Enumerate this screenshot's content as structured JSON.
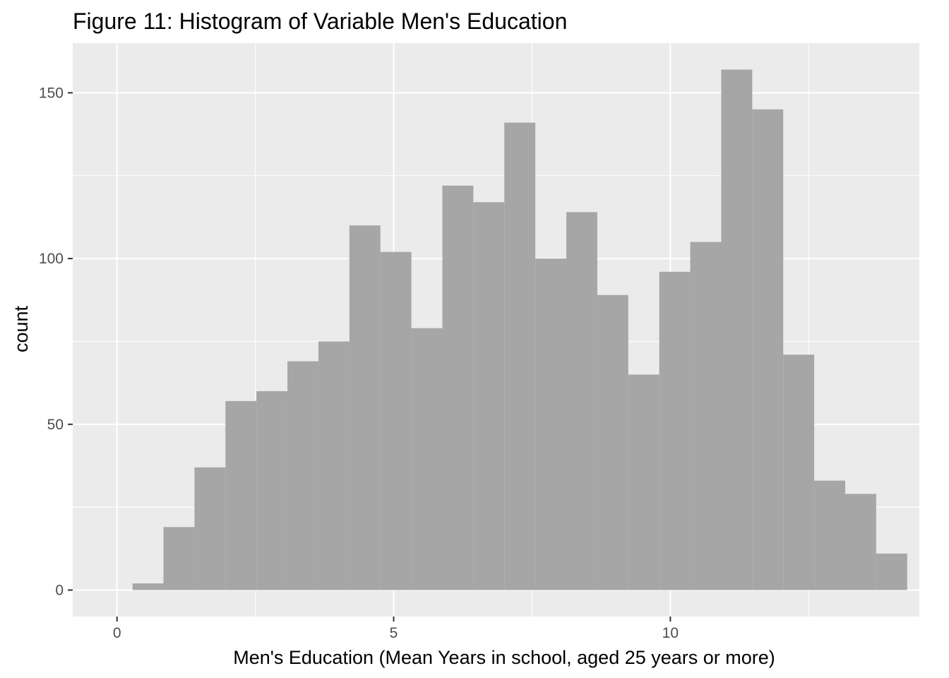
{
  "chart_data": {
    "type": "bar",
    "title": "Figure 11: Histogram of Variable Men's Education",
    "xlabel": "Men's Education (Mean Years in school, aged 25 years or more)",
    "ylabel": "count",
    "x_ticks": [
      "0",
      "5",
      "10"
    ],
    "y_ticks": [
      "0",
      "50",
      "100",
      "150"
    ],
    "xlim": [
      -0.8,
      14.5
    ],
    "ylim": [
      -8,
      165
    ],
    "bins": [
      {
        "x0": 0.28,
        "x1": 0.84,
        "count": 2
      },
      {
        "x0": 0.84,
        "x1": 1.4,
        "count": 19
      },
      {
        "x0": 1.4,
        "x1": 1.96,
        "count": 37
      },
      {
        "x0": 1.96,
        "x1": 2.52,
        "count": 57
      },
      {
        "x0": 2.52,
        "x1": 3.08,
        "count": 60
      },
      {
        "x0": 3.08,
        "x1": 3.64,
        "count": 69
      },
      {
        "x0": 3.64,
        "x1": 4.2,
        "count": 75
      },
      {
        "x0": 4.2,
        "x1": 4.76,
        "count": 110
      },
      {
        "x0": 4.76,
        "x1": 5.32,
        "count": 102
      },
      {
        "x0": 5.32,
        "x1": 5.88,
        "count": 79
      },
      {
        "x0": 5.88,
        "x1": 6.44,
        "count": 122
      },
      {
        "x0": 6.44,
        "x1": 7.0,
        "count": 117
      },
      {
        "x0": 7.0,
        "x1": 7.56,
        "count": 141
      },
      {
        "x0": 7.56,
        "x1": 8.12,
        "count": 100
      },
      {
        "x0": 8.12,
        "x1": 8.68,
        "count": 114
      },
      {
        "x0": 8.68,
        "x1": 9.24,
        "count": 89
      },
      {
        "x0": 9.24,
        "x1": 9.8,
        "count": 65
      },
      {
        "x0": 9.8,
        "x1": 10.36,
        "count": 96
      },
      {
        "x0": 10.36,
        "x1": 10.92,
        "count": 105
      },
      {
        "x0": 10.92,
        "x1": 11.48,
        "count": 157
      },
      {
        "x0": 11.48,
        "x1": 12.04,
        "count": 145
      },
      {
        "x0": 12.04,
        "x1": 12.6,
        "count": 71
      },
      {
        "x0": 12.6,
        "x1": 13.16,
        "count": 33
      },
      {
        "x0": 13.16,
        "x1": 13.72,
        "count": 29
      },
      {
        "x0": 13.72,
        "x1": 14.28,
        "count": 11
      }
    ],
    "colors": {
      "panel": "#ebebeb",
      "grid": "#ffffff",
      "bar": "#a2a2a2",
      "tick": "#333333"
    },
    "grid": true,
    "legend": "none"
  }
}
